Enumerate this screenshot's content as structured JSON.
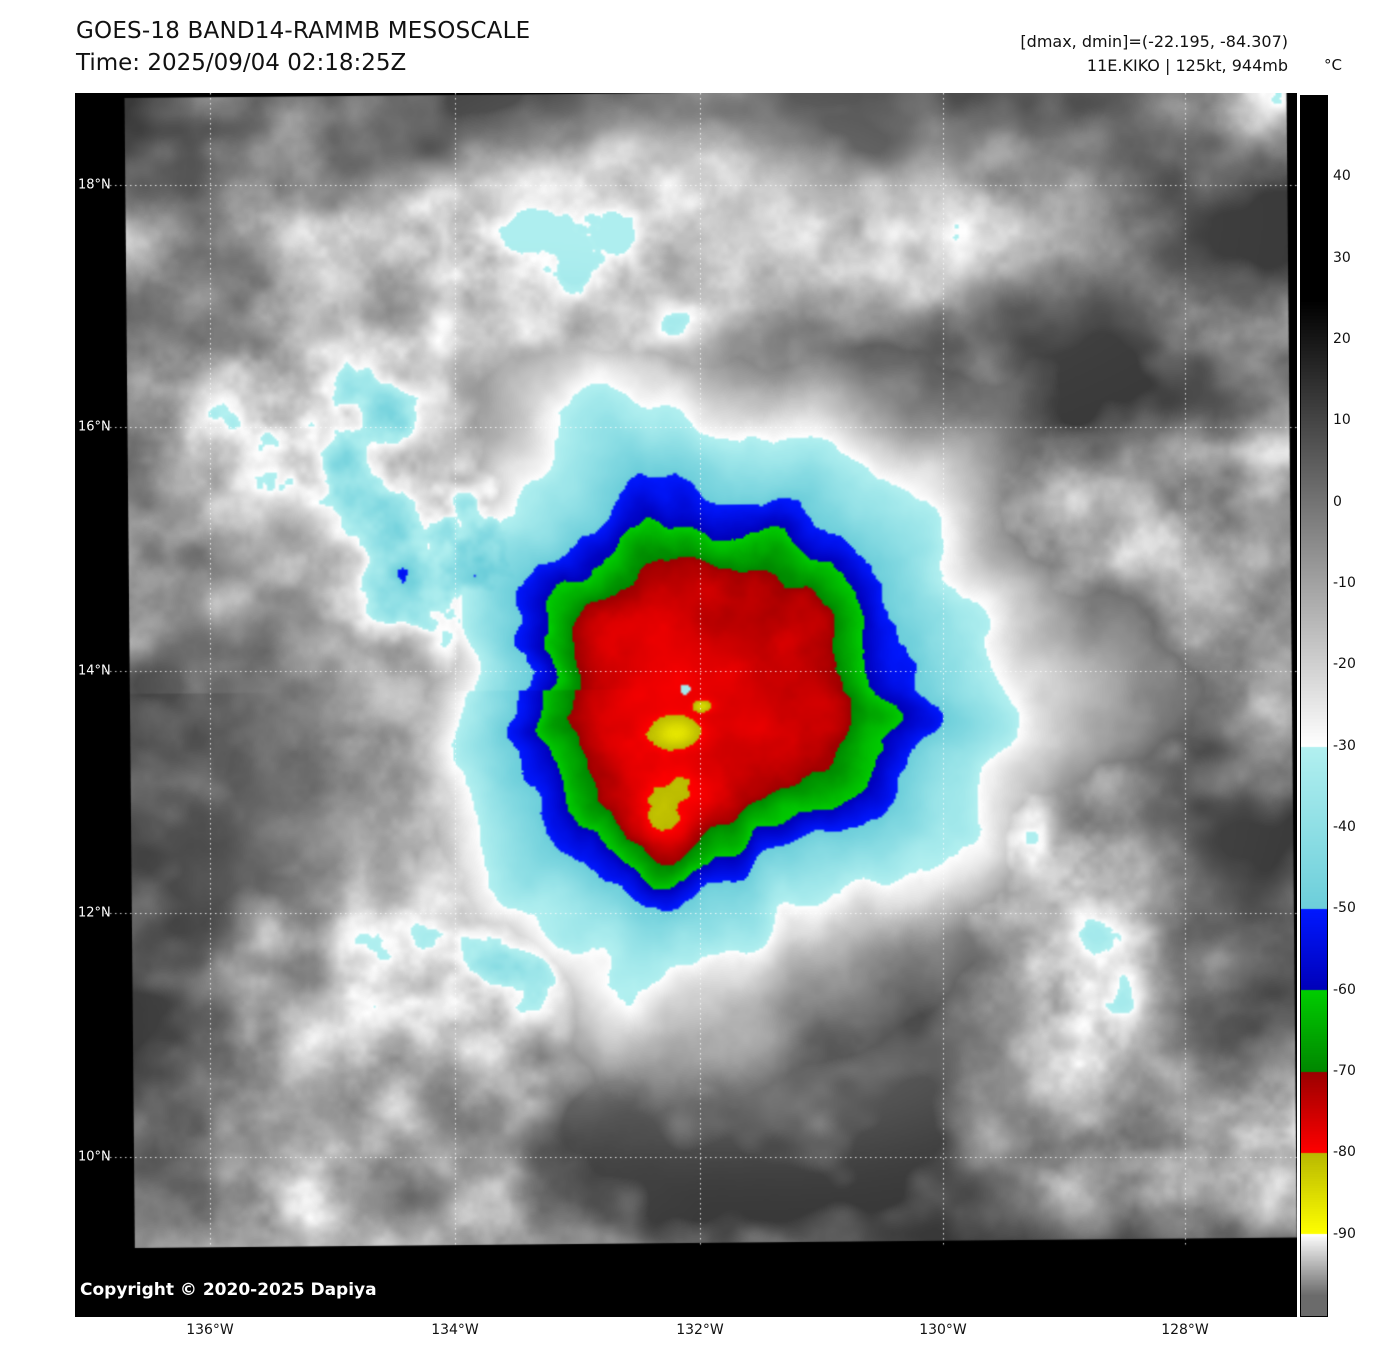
{
  "header": {
    "title": "GOES-18 BAND14-RAMMB MESOSCALE",
    "time_line": "Time: 2025/09/04 02:18:25Z",
    "dmax_dmin": "[dmax, dmin]=(-22.195, -84.307)",
    "storm_info": "11E.KIKO | 125kt, 944mb"
  },
  "colorbar": {
    "unit_label": "°C",
    "ticks": [
      "40",
      "30",
      "20",
      "10",
      "0",
      "-10",
      "-20",
      "-30",
      "-40",
      "-50",
      "-60",
      "-70",
      "-80",
      "-90"
    ],
    "band_colors": {
      "cyan": "#87dede",
      "blue": "#0a0ae0",
      "green": "#00b400",
      "dark_red": "#9b0000",
      "red": "#ff0000",
      "yellow": "#ffff00"
    }
  },
  "map": {
    "lat_labels": [
      "18°N",
      "16°N",
      "14°N",
      "12°N",
      "10°N"
    ],
    "lon_labels": [
      "136°W",
      "134°W",
      "132°W",
      "130°W",
      "128°W"
    ],
    "copyright": "Copyright © 2020-2025 Dapiya"
  }
}
